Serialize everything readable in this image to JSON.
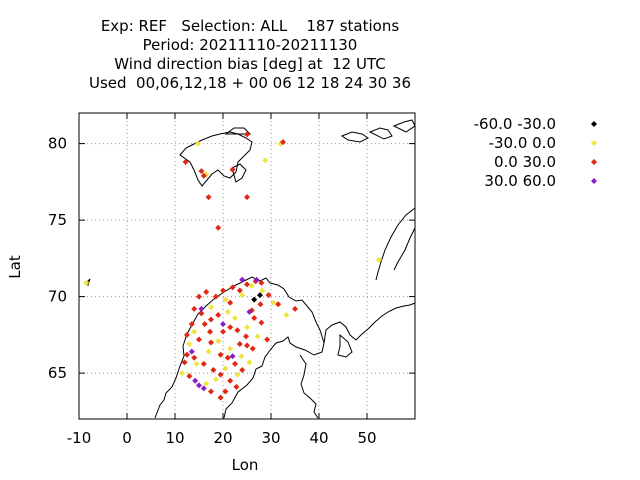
{
  "title_lines": [
    "Exp: REF   Selection: ALL    187 stations",
    "Period: 20211110-20211130",
    "Wind direction bias [deg] at  12 UTC",
    "Used  00,06,12,18 + 00 06 12 18 24 30 36"
  ],
  "chart_data": {
    "type": "scatter",
    "xlabel": "Lon",
    "ylabel": "Lat",
    "xlim": [
      -10,
      60
    ],
    "ylim": [
      62,
      82
    ],
    "xticks": [
      -10,
      0,
      10,
      20,
      30,
      40,
      50
    ],
    "yticks": [
      65,
      70,
      75,
      80
    ],
    "grid": true,
    "legend_position": "right",
    "series": [
      {
        "name": "-60.0 -30.0",
        "color": "#000000",
        "points": [
          [
            26.5,
            69.8
          ],
          [
            27.7,
            70.1
          ]
        ]
      },
      {
        "name": "-30.0 0.0",
        "color": "#f0e442",
        "points": [
          [
            14.8,
            80.0
          ],
          [
            16.5,
            78.0
          ],
          [
            28.8,
            78.9
          ],
          [
            32.0,
            80.0
          ],
          [
            -8.5,
            70.9
          ],
          [
            52.5,
            72.4
          ],
          [
            24.0,
            70.1
          ],
          [
            26.0,
            70.7
          ],
          [
            28.2,
            70.4
          ],
          [
            30.5,
            69.6
          ],
          [
            33.2,
            68.8
          ],
          [
            20.5,
            69.8
          ],
          [
            17.5,
            69.3
          ],
          [
            22.5,
            68.6
          ],
          [
            25.0,
            68.0
          ],
          [
            27.2,
            67.4
          ],
          [
            19.0,
            67.1
          ],
          [
            21.5,
            66.6
          ],
          [
            23.8,
            66.1
          ],
          [
            17.0,
            66.4
          ],
          [
            14.5,
            65.6
          ],
          [
            13.0,
            66.9
          ],
          [
            20.5,
            65.3
          ],
          [
            23.0,
            64.9
          ],
          [
            18.5,
            64.6
          ],
          [
            16.5,
            64.3
          ],
          [
            25.5,
            65.7
          ],
          [
            11.5,
            65.0
          ],
          [
            14.0,
            67.7
          ],
          [
            21.0,
            69.0
          ]
        ]
      },
      {
        "name": "0.0 30.0",
        "color": "#e02814",
        "points": [
          [
            12.2,
            78.8
          ],
          [
            15.5,
            78.2
          ],
          [
            16.0,
            77.9
          ],
          [
            17.0,
            76.5
          ],
          [
            19.0,
            74.5
          ],
          [
            25.0,
            76.5
          ],
          [
            22.0,
            78.3
          ],
          [
            25.0,
            80.6
          ],
          [
            32.5,
            80.1
          ],
          [
            15.0,
            70.0
          ],
          [
            16.5,
            70.3
          ],
          [
            18.5,
            70.0
          ],
          [
            20.0,
            70.4
          ],
          [
            22.0,
            70.6
          ],
          [
            23.5,
            70.4
          ],
          [
            25.0,
            70.8
          ],
          [
            26.8,
            71.0
          ],
          [
            28.0,
            70.9
          ],
          [
            29.5,
            70.1
          ],
          [
            31.5,
            69.5
          ],
          [
            35.0,
            69.2
          ],
          [
            14.0,
            69.2
          ],
          [
            15.5,
            68.9
          ],
          [
            17.5,
            68.5
          ],
          [
            19.0,
            68.8
          ],
          [
            21.5,
            68.0
          ],
          [
            23.0,
            67.8
          ],
          [
            24.8,
            67.4
          ],
          [
            26.5,
            68.6
          ],
          [
            28.0,
            68.3
          ],
          [
            29.2,
            67.2
          ],
          [
            26.2,
            66.6
          ],
          [
            13.5,
            68.2
          ],
          [
            12.5,
            67.5
          ],
          [
            15.0,
            67.2
          ],
          [
            17.3,
            67.7
          ],
          [
            19.5,
            66.2
          ],
          [
            21.0,
            66.0
          ],
          [
            22.5,
            65.6
          ],
          [
            24.0,
            65.2
          ],
          [
            25.0,
            66.8
          ],
          [
            12.5,
            66.2
          ],
          [
            14.0,
            66.0
          ],
          [
            16.0,
            65.6
          ],
          [
            18.0,
            65.2
          ],
          [
            19.5,
            64.9
          ],
          [
            21.5,
            64.5
          ],
          [
            22.8,
            64.1
          ],
          [
            17.5,
            63.8
          ],
          [
            19.5,
            63.4
          ],
          [
            20.5,
            63.8
          ],
          [
            12.0,
            65.7
          ],
          [
            13.0,
            64.8
          ],
          [
            21.5,
            69.6
          ],
          [
            26.0,
            69.1
          ],
          [
            17.5,
            67.0
          ],
          [
            23.5,
            66.9
          ],
          [
            20.0,
            67.7
          ],
          [
            16.2,
            68.2
          ],
          [
            27.8,
            69.5
          ]
        ]
      },
      {
        "name": "30.0 60.0",
        "color": "#8a1fc8",
        "points": [
          [
            24.0,
            71.1
          ],
          [
            15.5,
            69.2
          ],
          [
            13.5,
            66.4
          ],
          [
            15.0,
            64.2
          ],
          [
            16.0,
            64.0
          ],
          [
            22.0,
            66.1
          ],
          [
            20.0,
            68.2
          ],
          [
            25.5,
            69.0
          ],
          [
            14.2,
            64.5
          ],
          [
            27.0,
            71.1
          ]
        ]
      }
    ]
  }
}
